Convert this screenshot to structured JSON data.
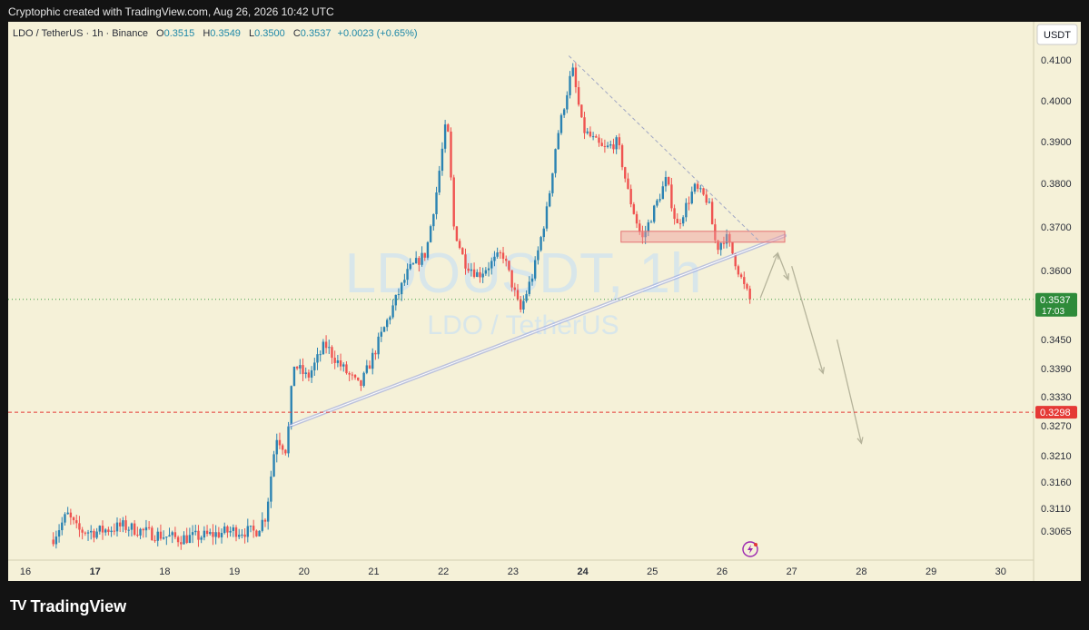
{
  "header": {
    "attribution": "Cryptophic created with TradingView.com, Aug 26, 2026 10:42 UTC"
  },
  "legend": {
    "symbol": "LDO / TetherUS · 1h · Binance",
    "open_label": "O",
    "open": "0.3515",
    "high_label": "H",
    "high": "0.3549",
    "low_label": "L",
    "low": "0.3500",
    "close_label": "C",
    "close": "0.3537",
    "change": "+0.0023 (+0.65%)"
  },
  "watermark": {
    "line1": "LDOUSDT, 1h",
    "line2": "LDO / TetherUS"
  },
  "currency_button": "USDT",
  "footer": {
    "logo_text": "TradingView",
    "logo_mark": "TV"
  },
  "colors": {
    "up": "#2b83b2",
    "down": "#ef5350",
    "background": "#f5f1d8",
    "trendline": "#8f9cdf",
    "zone": "#ef9a9a",
    "price_tag": "#2e8b3a",
    "alert_line": "#e53935"
  },
  "chart_data": {
    "type": "candlestick",
    "symbol": "LDO / TetherUS",
    "interval": "1h",
    "exchange": "Binance",
    "x_ticks": [
      "16",
      "17",
      "18",
      "19",
      "20",
      "21",
      "22",
      "23",
      "24",
      "25",
      "26",
      "27",
      "28",
      "29",
      "30"
    ],
    "y_ticks": [
      "0.4100",
      "0.4000",
      "0.3900",
      "0.3800",
      "0.3700",
      "0.3600",
      "0.3450",
      "0.3390",
      "0.3330",
      "0.3270",
      "0.3210",
      "0.3160",
      "0.3110",
      "0.3065"
    ],
    "current_price": {
      "value": "0.3537",
      "countdown": "17:03",
      "price": 0.3537
    },
    "alert_line": {
      "value": "0.3298",
      "price": 0.3298
    },
    "close_path": [
      {
        "d": 16.4,
        "p": 0.3052
      },
      {
        "d": 16.6,
        "p": 0.3098
      },
      {
        "d": 16.75,
        "p": 0.3066
      },
      {
        "d": 17.0,
        "p": 0.3063
      },
      {
        "d": 17.4,
        "p": 0.3075
      },
      {
        "d": 17.8,
        "p": 0.306
      },
      {
        "d": 18.2,
        "p": 0.305
      },
      {
        "d": 18.6,
        "p": 0.3056
      },
      {
        "d": 19.0,
        "p": 0.3066
      },
      {
        "d": 19.3,
        "p": 0.3063
      },
      {
        "d": 19.45,
        "p": 0.3095
      },
      {
        "d": 19.6,
        "p": 0.325
      },
      {
        "d": 19.75,
        "p": 0.322
      },
      {
        "d": 19.85,
        "p": 0.34
      },
      {
        "d": 20.05,
        "p": 0.337
      },
      {
        "d": 20.3,
        "p": 0.344
      },
      {
        "d": 20.5,
        "p": 0.34
      },
      {
        "d": 20.8,
        "p": 0.335
      },
      {
        "d": 21.0,
        "p": 0.342
      },
      {
        "d": 21.3,
        "p": 0.353
      },
      {
        "d": 21.5,
        "p": 0.36
      },
      {
        "d": 21.75,
        "p": 0.364
      },
      {
        "d": 21.9,
        "p": 0.378
      },
      {
        "d": 22.05,
        "p": 0.396
      },
      {
        "d": 22.15,
        "p": 0.37
      },
      {
        "d": 22.3,
        "p": 0.362
      },
      {
        "d": 22.5,
        "p": 0.359
      },
      {
        "d": 22.85,
        "p": 0.364
      },
      {
        "d": 23.1,
        "p": 0.351
      },
      {
        "d": 23.3,
        "p": 0.36
      },
      {
        "d": 23.5,
        "p": 0.375
      },
      {
        "d": 23.62,
        "p": 0.39
      },
      {
        "d": 23.85,
        "p": 0.408
      },
      {
        "d": 24.0,
        "p": 0.393
      },
      {
        "d": 24.3,
        "p": 0.388
      },
      {
        "d": 24.5,
        "p": 0.39
      },
      {
        "d": 24.65,
        "p": 0.378
      },
      {
        "d": 24.85,
        "p": 0.367
      },
      {
        "d": 25.2,
        "p": 0.381
      },
      {
        "d": 25.35,
        "p": 0.37
      },
      {
        "d": 25.6,
        "p": 0.379
      },
      {
        "d": 25.8,
        "p": 0.376
      },
      {
        "d": 25.92,
        "p": 0.365
      },
      {
        "d": 26.05,
        "p": 0.368
      },
      {
        "d": 26.15,
        "p": 0.364
      },
      {
        "d": 26.3,
        "p": 0.357
      },
      {
        "d": 26.4,
        "p": 0.3537
      }
    ],
    "annotations": {
      "trendline": [
        {
          "d": 19.8,
          "p": 0.327
        },
        {
          "d": 26.9,
          "p": 0.368
        }
      ],
      "resistance_zone": {
        "d1": 24.55,
        "d2": 26.9,
        "p_top": 0.369,
        "p_bottom": 0.3665
      },
      "descending_line": [
        {
          "d": 23.8,
          "p": 0.411
        },
        {
          "d": 26.55,
          "p": 0.3665
        }
      ],
      "projected_path": [
        [
          {
            "d": 26.55,
            "p": 0.354
          },
          {
            "d": 26.8,
            "p": 0.364
          }
        ],
        [
          {
            "d": 26.8,
            "p": 0.364
          },
          {
            "d": 26.95,
            "p": 0.358
          }
        ],
        [
          {
            "d": 27.0,
            "p": 0.361
          },
          {
            "d": 27.45,
            "p": 0.338
          }
        ],
        [
          {
            "d": 27.65,
            "p": 0.345
          },
          {
            "d": 28.0,
            "p": 0.3235
          }
        ]
      ]
    }
  }
}
